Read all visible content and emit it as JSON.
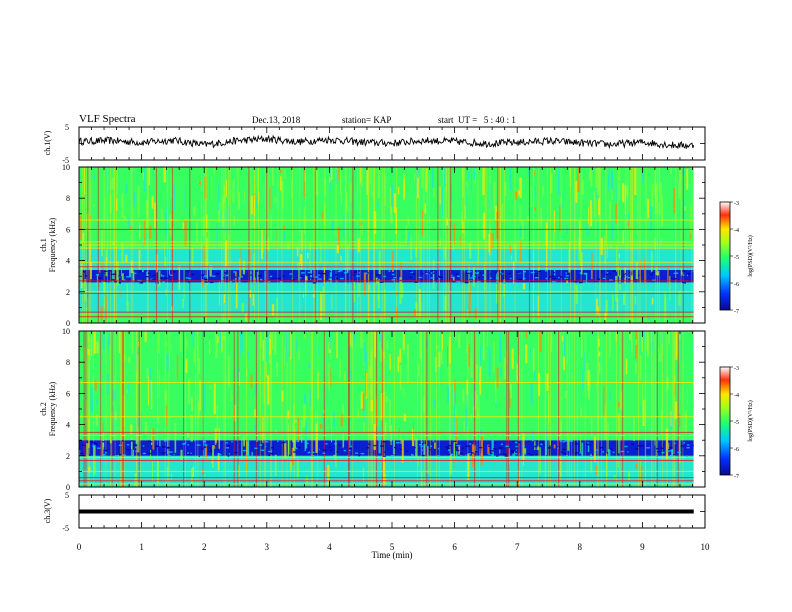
{
  "header": {
    "title": "VLF Spectra",
    "date": "Dec.13, 2018",
    "station": "station= KAP",
    "start_ut": "start  UT =   5 : 40 : 1"
  },
  "colors": {
    "spectrogram_background": "#22e6cf",
    "low_power": "#0a1fd0",
    "mid_power": "#38ff60",
    "high_power": "#ffe600",
    "peak_power": "#e8101a"
  },
  "chart_data": [
    {
      "type": "line",
      "panel": "ch1-waveform",
      "ylabel": "ch.1(V)",
      "yticks": [
        "5",
        "-5"
      ],
      "ylim": [
        -5,
        5
      ],
      "xlim": [
        0,
        10
      ],
      "data_end_min": 9.82,
      "description_series": [
        {
          "x": 0.0,
          "y": 0.6
        },
        {
          "x": 0.5,
          "y": 0.9
        },
        {
          "x": 1.0,
          "y": 0.3
        },
        {
          "x": 1.5,
          "y": 1.0
        },
        {
          "x": 2.0,
          "y": -0.4
        },
        {
          "x": 2.5,
          "y": 0.8
        },
        {
          "x": 3.0,
          "y": 1.4
        },
        {
          "x": 3.5,
          "y": 0.5
        },
        {
          "x": 4.0,
          "y": 1.2
        },
        {
          "x": 4.5,
          "y": 0.4
        },
        {
          "x": 5.0,
          "y": 0.1
        },
        {
          "x": 5.5,
          "y": 0.9
        },
        {
          "x": 6.0,
          "y": 0.6
        },
        {
          "x": 6.5,
          "y": 0.0
        },
        {
          "x": 7.0,
          "y": 0.3
        },
        {
          "x": 7.5,
          "y": 0.8
        },
        {
          "x": 8.0,
          "y": 0.2
        },
        {
          "x": 8.5,
          "y": -0.3
        },
        {
          "x": 9.0,
          "y": 0.4
        },
        {
          "x": 9.5,
          "y": -0.5
        },
        {
          "x": 9.82,
          "y": -0.6
        }
      ]
    },
    {
      "type": "heatmap",
      "panel": "ch1-spectrogram",
      "ylabel": "Frequency (kHz)",
      "channel_label": "ch.1",
      "yticks": [
        "0",
        "2",
        "4",
        "6",
        "8",
        "10"
      ],
      "ylim": [
        0,
        10
      ],
      "xlim": [
        0,
        10
      ],
      "data_end_min": 9.82,
      "colorbar": {
        "label": "log(PSD)(V²/Hz)",
        "ticks": [
          "-3",
          "-4",
          "-5",
          "-6",
          "-7"
        ],
        "range": [
          -7,
          -3
        ]
      },
      "bands_khz": [
        {
          "from": 0.0,
          "to": 0.6,
          "level": "mid"
        },
        {
          "from": 0.6,
          "to": 2.6,
          "level": "bg"
        },
        {
          "from": 2.6,
          "to": 3.4,
          "level": "low"
        },
        {
          "from": 3.4,
          "to": 4.8,
          "level": "bg"
        },
        {
          "from": 4.8,
          "to": 10.0,
          "level": "mid"
        }
      ],
      "lines_khz": [
        0.4,
        0.7,
        1.9,
        2.0,
        2.7,
        3.6,
        3.9,
        4.8,
        5.0,
        5.2,
        6.0,
        6.6
      ]
    },
    {
      "type": "heatmap",
      "panel": "ch2-spectrogram",
      "ylabel": "Frequency (kHz)",
      "channel_label": "ch.2",
      "yticks": [
        "0",
        "2",
        "4",
        "6",
        "8",
        "10"
      ],
      "ylim": [
        0,
        10
      ],
      "xlim": [
        0,
        10
      ],
      "data_end_min": 9.82,
      "colorbar": {
        "label": "log(PSD)(V²/Hz)",
        "ticks": [
          "-3",
          "-4",
          "-5",
          "-6",
          "-7"
        ],
        "range": [
          -7,
          -3
        ]
      },
      "bands_khz": [
        {
          "from": 0.0,
          "to": 2.0,
          "level": "bg"
        },
        {
          "from": 2.0,
          "to": 3.0,
          "level": "low"
        },
        {
          "from": 3.0,
          "to": 10.0,
          "level": "mid"
        }
      ],
      "lines_khz": [
        0.2,
        0.4,
        0.6,
        1.0,
        1.7,
        1.9,
        3.3,
        3.5,
        4.5,
        6.7
      ]
    },
    {
      "type": "line",
      "panel": "ch3-waveform",
      "ylabel": "ch.3(V)",
      "yticks": [
        "5",
        "-5"
      ],
      "ylim": [
        -5,
        5
      ],
      "xlim": [
        0,
        10
      ],
      "data_end_min": 9.82,
      "constant_value": 0
    }
  ],
  "x_axis": {
    "label": "Time (min)",
    "ticks": [
      "0",
      "1",
      "2",
      "3",
      "4",
      "5",
      "6",
      "7",
      "8",
      "9",
      "10"
    ]
  }
}
